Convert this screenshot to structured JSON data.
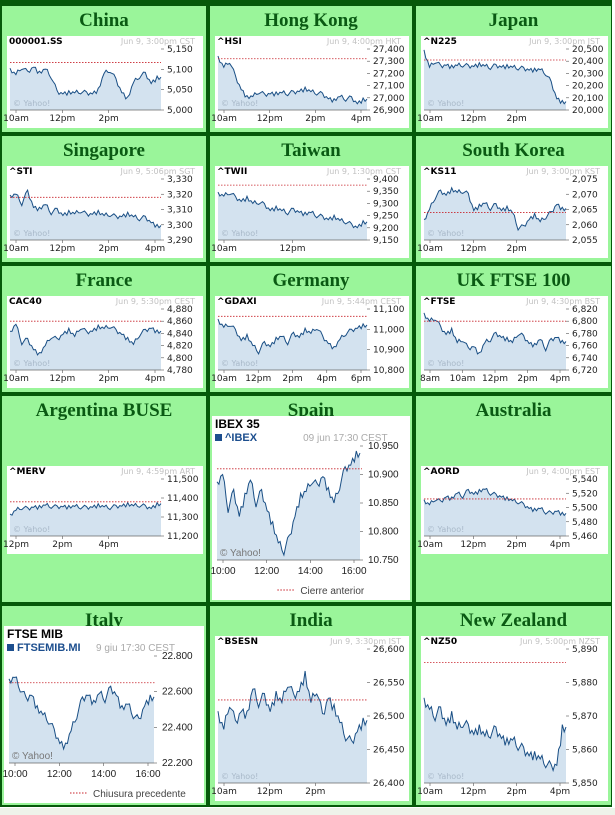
{
  "colors": {
    "border": "#06590a",
    "cell_bg": "#9af59a",
    "title": "#0a5a13",
    "chart_fill": "#d3e2ef",
    "chart_line": "#1a4f85",
    "prev_close": "#c8242c"
  },
  "markets": [
    {
      "name": "China",
      "symbol": "000001.SS",
      "datetime": "Jun 9, 3:00pm CST",
      "y_ticks": [
        "5,150",
        "5,100",
        "5,050",
        "5,000"
      ],
      "x_ticks": [
        "10am",
        "12pm",
        "2pm"
      ],
      "watermark": "© Yahoo!"
    },
    {
      "name": "Hong Kong",
      "symbol": "^HSI",
      "datetime": "Jun 9, 4:00pm HKT",
      "y_ticks": [
        "27,400",
        "27,300",
        "27,200",
        "27,100",
        "27,000",
        "26,900"
      ],
      "x_ticks": [
        "10am",
        "12pm",
        "2pm",
        "4pm"
      ],
      "watermark": "© Yahoo!"
    },
    {
      "name": "Japan",
      "symbol": "^N225",
      "datetime": "Jun 9, 3:00pm JST",
      "y_ticks": [
        "20,500",
        "20,400",
        "20,300",
        "20,200",
        "20,100",
        "20,000"
      ],
      "x_ticks": [
        "10am",
        "12pm",
        "2pm"
      ],
      "watermark": "© Yahoo!"
    },
    {
      "name": "Singapore",
      "symbol": "^STI",
      "datetime": "Jun 9, 5:06pm SGT",
      "y_ticks": [
        "3,330",
        "3,320",
        "3,310",
        "3,300",
        "3,290"
      ],
      "x_ticks": [
        "10am",
        "12pm",
        "2pm",
        "4pm"
      ],
      "watermark": "© Yahoo!"
    },
    {
      "name": "Taiwan",
      "symbol": "^TWII",
      "datetime": "Jun 9, 1:30pm CST",
      "y_ticks": [
        "9,400",
        "9,350",
        "9,300",
        "9,250",
        "9,200",
        "9,150"
      ],
      "x_ticks": [
        "10am",
        "12pm"
      ],
      "watermark": "© Yahoo!"
    },
    {
      "name": "South Korea",
      "symbol": "^KS11",
      "datetime": "Jun 9, 3:00pm KST",
      "y_ticks": [
        "2,075",
        "2,070",
        "2,065",
        "2,060",
        "2,055"
      ],
      "x_ticks": [
        "10am",
        "12pm",
        "2pm"
      ],
      "watermark": "© Yahoo!"
    },
    {
      "name": "France",
      "symbol": "CAC40",
      "datetime": "Jun 9, 5:30pm CEST",
      "y_ticks": [
        "4,880",
        "4,860",
        "4,840",
        "4,820",
        "4,800",
        "4,780"
      ],
      "x_ticks": [
        "10am",
        "12pm",
        "2pm",
        "4pm"
      ],
      "watermark": "© Yahoo!"
    },
    {
      "name": "Germany",
      "symbol": "^GDAXI",
      "datetime": "Jun 9, 5:44pm CEST",
      "y_ticks": [
        "11,100",
        "11,000",
        "10,900",
        "10,800"
      ],
      "x_ticks": [
        "10am",
        "12pm",
        "2pm",
        "4pm",
        "6pm"
      ],
      "watermark": "© Yahoo!"
    },
    {
      "name": "UK FTSE 100",
      "symbol": "^FTSE",
      "datetime": "Jun 9, 4:30pm BST",
      "y_ticks": [
        "6,820",
        "6,800",
        "6,780",
        "6,760",
        "6,740",
        "6,720"
      ],
      "x_ticks": [
        "8am",
        "10am",
        "12pm",
        "2pm",
        "4pm"
      ],
      "watermark": "© Yahoo!"
    },
    {
      "name": "Argentina BUSE",
      "symbol": "^MERV",
      "datetime": "Jun 9, 4:59pm ART",
      "y_ticks": [
        "11,500",
        "11,400",
        "11,300",
        "11,200"
      ],
      "x_ticks": [
        "12pm",
        "2pm",
        "4pm"
      ],
      "watermark": "© Yahoo!"
    },
    {
      "name": "Spain",
      "title": "IBEX 35",
      "symbol": "^IBEX",
      "datetime": "09 jun 17:30 CEST",
      "y_ticks": [
        "10.950",
        "10.900",
        "10.850",
        "10.800",
        "10.750"
      ],
      "x_ticks": [
        "10:00",
        "12:00",
        "14:00",
        "16:00"
      ],
      "watermark": "© Yahoo!",
      "legend": "Cierre anterior"
    },
    {
      "name": "Australia",
      "symbol": "^AORD",
      "datetime": "Jun 9, 4:00pm EST",
      "y_ticks": [
        "5,540",
        "5,520",
        "5,500",
        "5,480",
        "5,460"
      ],
      "x_ticks": [
        "10am",
        "12pm",
        "2pm",
        "4pm"
      ],
      "watermark": "© Yahoo!"
    },
    {
      "name": "Italy",
      "title": "FTSE MIB",
      "symbol": "FTSEMIB.MI",
      "datetime": "9 giu 17:30 CEST",
      "y_ticks": [
        "22.800",
        "22.600",
        "22.400",
        "22.200"
      ],
      "x_ticks": [
        "10:00",
        "12:00",
        "14:00",
        "16:00"
      ],
      "watermark": "© Yahoo!",
      "legend": "Chiusura precedente"
    },
    {
      "name": "India",
      "symbol": "^BSESN",
      "datetime": "Jun 9, 3:30pm IST",
      "y_ticks": [
        "26,600",
        "26,550",
        "26,500",
        "26,450",
        "26,400"
      ],
      "x_ticks": [
        "10am",
        "12pm",
        "2pm"
      ],
      "watermark": "© Yahoo!"
    },
    {
      "name": "New Zealand",
      "symbol": "^NZ50",
      "datetime": "Jun 9, 5:00pm NZST",
      "y_ticks": [
        "5,890",
        "5,880",
        "5,870",
        "5,860",
        "5,850"
      ],
      "x_ticks": [
        "10am",
        "12pm",
        "2pm",
        "4pm"
      ],
      "watermark": "© Yahoo!"
    }
  ]
}
